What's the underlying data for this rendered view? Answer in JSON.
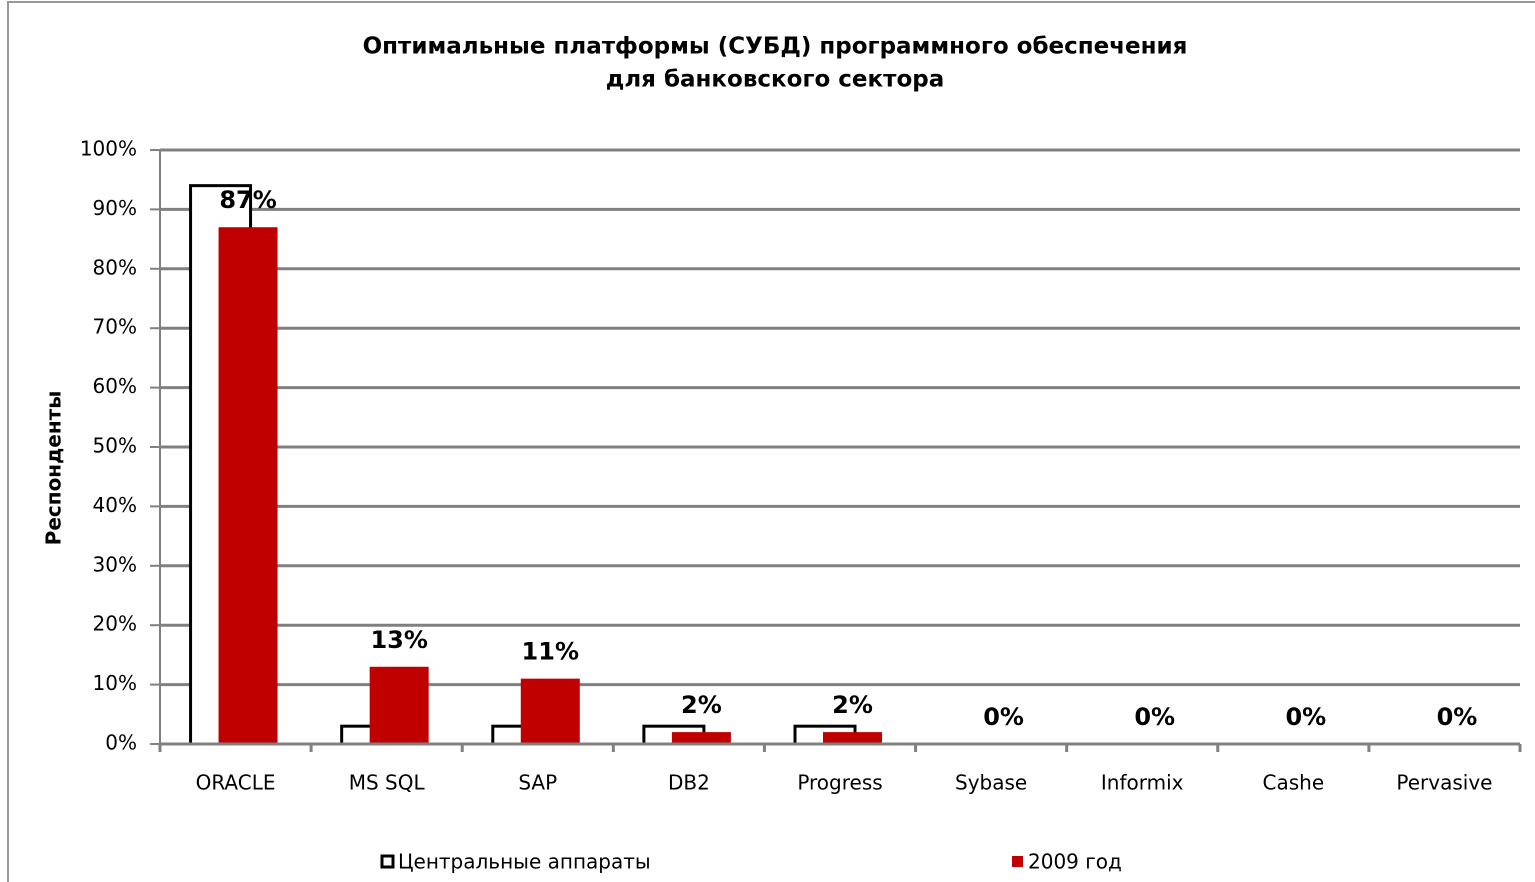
{
  "chart_data": {
    "type": "bar",
    "title": [
      "Оптимальные  платформы (СУБД) программного  обеспечения",
      "для банковского сектора"
    ],
    "y_label": "Респонденты",
    "categories": [
      "ORACLE",
      "MS SQL",
      "SAP",
      "DB2",
      "Progress",
      "Sybase",
      "Informix",
      "Cashe",
      "Pervasive"
    ],
    "series": [
      {
        "name": "Центральные аппараты",
        "color": "#ffffff",
        "values": [
          94,
          3,
          3,
          3,
          3,
          0,
          0,
          0,
          0
        ]
      },
      {
        "name": "2009 год",
        "color": "#c00000",
        "values": [
          87,
          13,
          11,
          2,
          2,
          0,
          0,
          0,
          0
        ],
        "value_labels": [
          "87%",
          "13%",
          "11%",
          "2%",
          "2%",
          "0%",
          "0%",
          "0%",
          "0%"
        ]
      }
    ],
    "ylim": [
      0,
      100
    ],
    "yticks": [
      {
        "value": 0,
        "label": "0%"
      },
      {
        "value": 10,
        "label": "10%"
      },
      {
        "value": 20,
        "label": "20%"
      },
      {
        "value": 30,
        "label": "30%"
      },
      {
        "value": 40,
        "label": "40%"
      },
      {
        "value": 50,
        "label": "50%"
      },
      {
        "value": 60,
        "label": "60%"
      },
      {
        "value": 70,
        "label": "70%"
      },
      {
        "value": 80,
        "label": "80%"
      },
      {
        "value": 90,
        "label": "90%"
      },
      {
        "value": 100,
        "label": "100%"
      }
    ],
    "grid": true
  }
}
